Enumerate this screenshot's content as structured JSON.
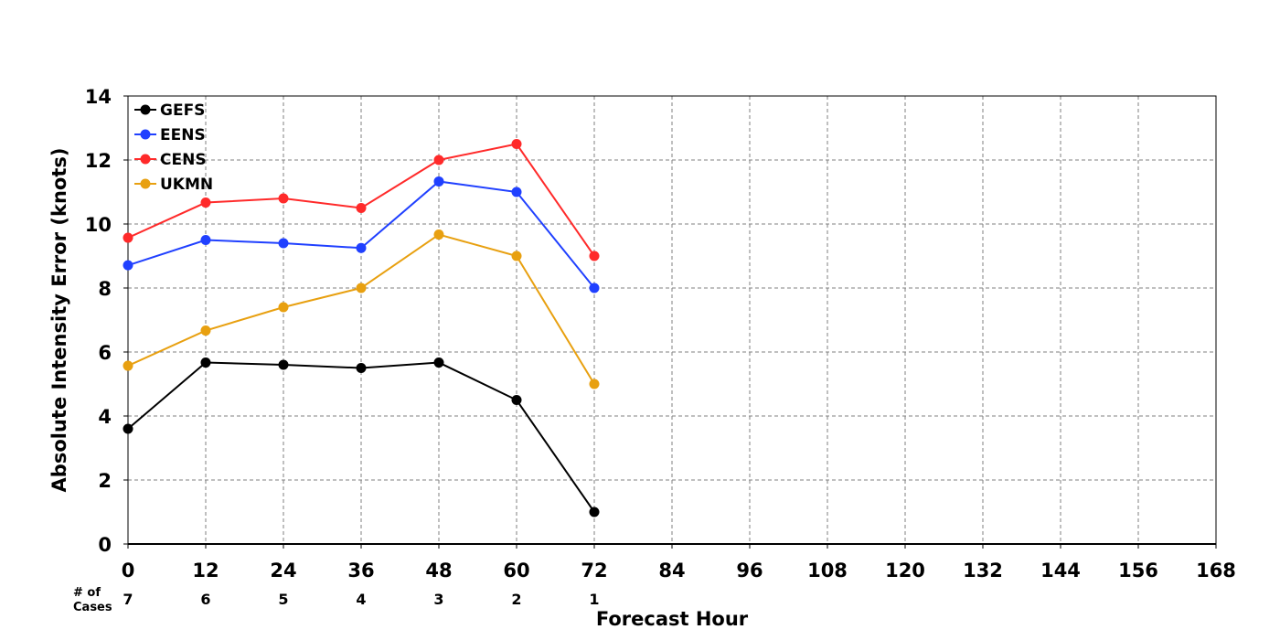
{
  "chart_data": {
    "type": "line",
    "title": "",
    "xlabel": "Forecast Hour",
    "ylabel": "Absolute Intensity Error (knots)",
    "xlim": [
      0,
      168
    ],
    "ylim": [
      0,
      14
    ],
    "xticks": [
      0,
      12,
      24,
      36,
      48,
      60,
      72,
      84,
      96,
      108,
      120,
      132,
      144,
      156,
      168
    ],
    "yticks": [
      0,
      2,
      4,
      6,
      8,
      10,
      12,
      14
    ],
    "grid": true,
    "legend_position": "top-left",
    "x": [
      0,
      12,
      24,
      36,
      48,
      60,
      72
    ],
    "series": [
      {
        "name": "GEFS",
        "color": "#000000",
        "values": [
          3.6,
          5.67,
          5.6,
          5.5,
          5.67,
          4.5,
          1.0
        ]
      },
      {
        "name": "EENS",
        "color": "#2040ff",
        "values": [
          8.71,
          9.5,
          9.4,
          9.25,
          11.33,
          11.0,
          8.0
        ]
      },
      {
        "name": "CENS",
        "color": "#ff2a2a",
        "values": [
          9.57,
          10.67,
          10.8,
          10.5,
          12.0,
          12.5,
          9.0
        ]
      },
      {
        "name": "UKMN",
        "color": "#e8a010",
        "values": [
          5.57,
          6.67,
          7.4,
          8.0,
          9.67,
          9.0,
          5.0
        ]
      }
    ],
    "cases": {
      "label_line1": "# of",
      "label_line2": "Cases",
      "x": [
        0,
        12,
        24,
        36,
        48,
        60,
        72
      ],
      "values": [
        "7",
        "6",
        "5",
        "4",
        "3",
        "2",
        "1"
      ]
    }
  }
}
